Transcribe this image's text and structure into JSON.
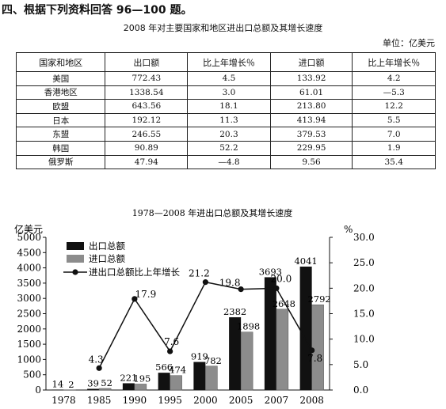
{
  "header": "四、根据下列资料回答 96—100 题。",
  "table": {
    "title": "2008 年对主要国家和地区进出口总额及其增长速度",
    "unit": "单位：亿美元",
    "columns": [
      "国家和地区",
      "出口额",
      "比上年增长％",
      "进口额",
      "比上年增长％"
    ],
    "rows": [
      [
        "美国",
        "772.43",
        "4.5",
        "133.92",
        "4.2"
      ],
      [
        "香港地区",
        "1338.54",
        "3.0",
        "61.01",
        "—5.3"
      ],
      [
        "欧盟",
        "643.56",
        "18.1",
        "213.80",
        "12.2"
      ],
      [
        "日本",
        "192.12",
        "11.3",
        "413.94",
        "5.5"
      ],
      [
        "东盟",
        "246.55",
        "20.3",
        "379.53",
        "7.0"
      ],
      [
        "韩国",
        "90.89",
        "52.2",
        "229.95",
        "1.9"
      ],
      [
        "俄罗斯",
        "47.94",
        "—4.8",
        "9.56",
        "35.4"
      ]
    ]
  },
  "chart_data": {
    "type": "bar",
    "title": "1978—2008 年进出口总额及其增长速度",
    "ylabel": "亿美元",
    "y2label": "%",
    "categories": [
      "1978",
      "1985",
      "1990",
      "1995",
      "2000",
      "2005",
      "2007",
      "2008"
    ],
    "ylim": [
      0,
      5000
    ],
    "y2lim": [
      0,
      30
    ],
    "yticks": [
      "0",
      "500",
      "1000",
      "1500",
      "2000",
      "2500",
      "3000",
      "3500",
      "4000",
      "4500",
      "5000"
    ],
    "y2ticks": [
      "0.0",
      "5.0",
      "10.0",
      "15.0",
      "20.0",
      "25.0",
      "30.0"
    ],
    "legend_position": "top-left",
    "series": [
      {
        "name": "出口总额",
        "kind": "bar",
        "color": "#111111",
        "values": [
          14,
          39,
          221,
          566,
          919,
          2382,
          3693,
          4041
        ],
        "labels": [
          "14",
          "39",
          "221",
          "566",
          "919",
          "2382",
          "3693",
          "4041"
        ]
      },
      {
        "name": "进口总额",
        "kind": "bar",
        "color": "#8c8c8c",
        "values": [
          2,
          52,
          195,
          474,
          782,
          1898,
          2648,
          2792
        ],
        "labels": [
          "2",
          "52",
          "195",
          "474",
          "782",
          "1898",
          "2648",
          "2792"
        ]
      },
      {
        "name": "进出口总额比上年增长",
        "kind": "line",
        "axis": "right",
        "color": "#111111",
        "values": [
          null,
          4.3,
          17.9,
          7.6,
          21.2,
          19.8,
          20.0,
          7.8
        ],
        "labels": [
          "",
          "4.3",
          "17.9",
          "7.6",
          "21.2",
          "19.8",
          "20.0",
          "7.8"
        ]
      }
    ]
  }
}
